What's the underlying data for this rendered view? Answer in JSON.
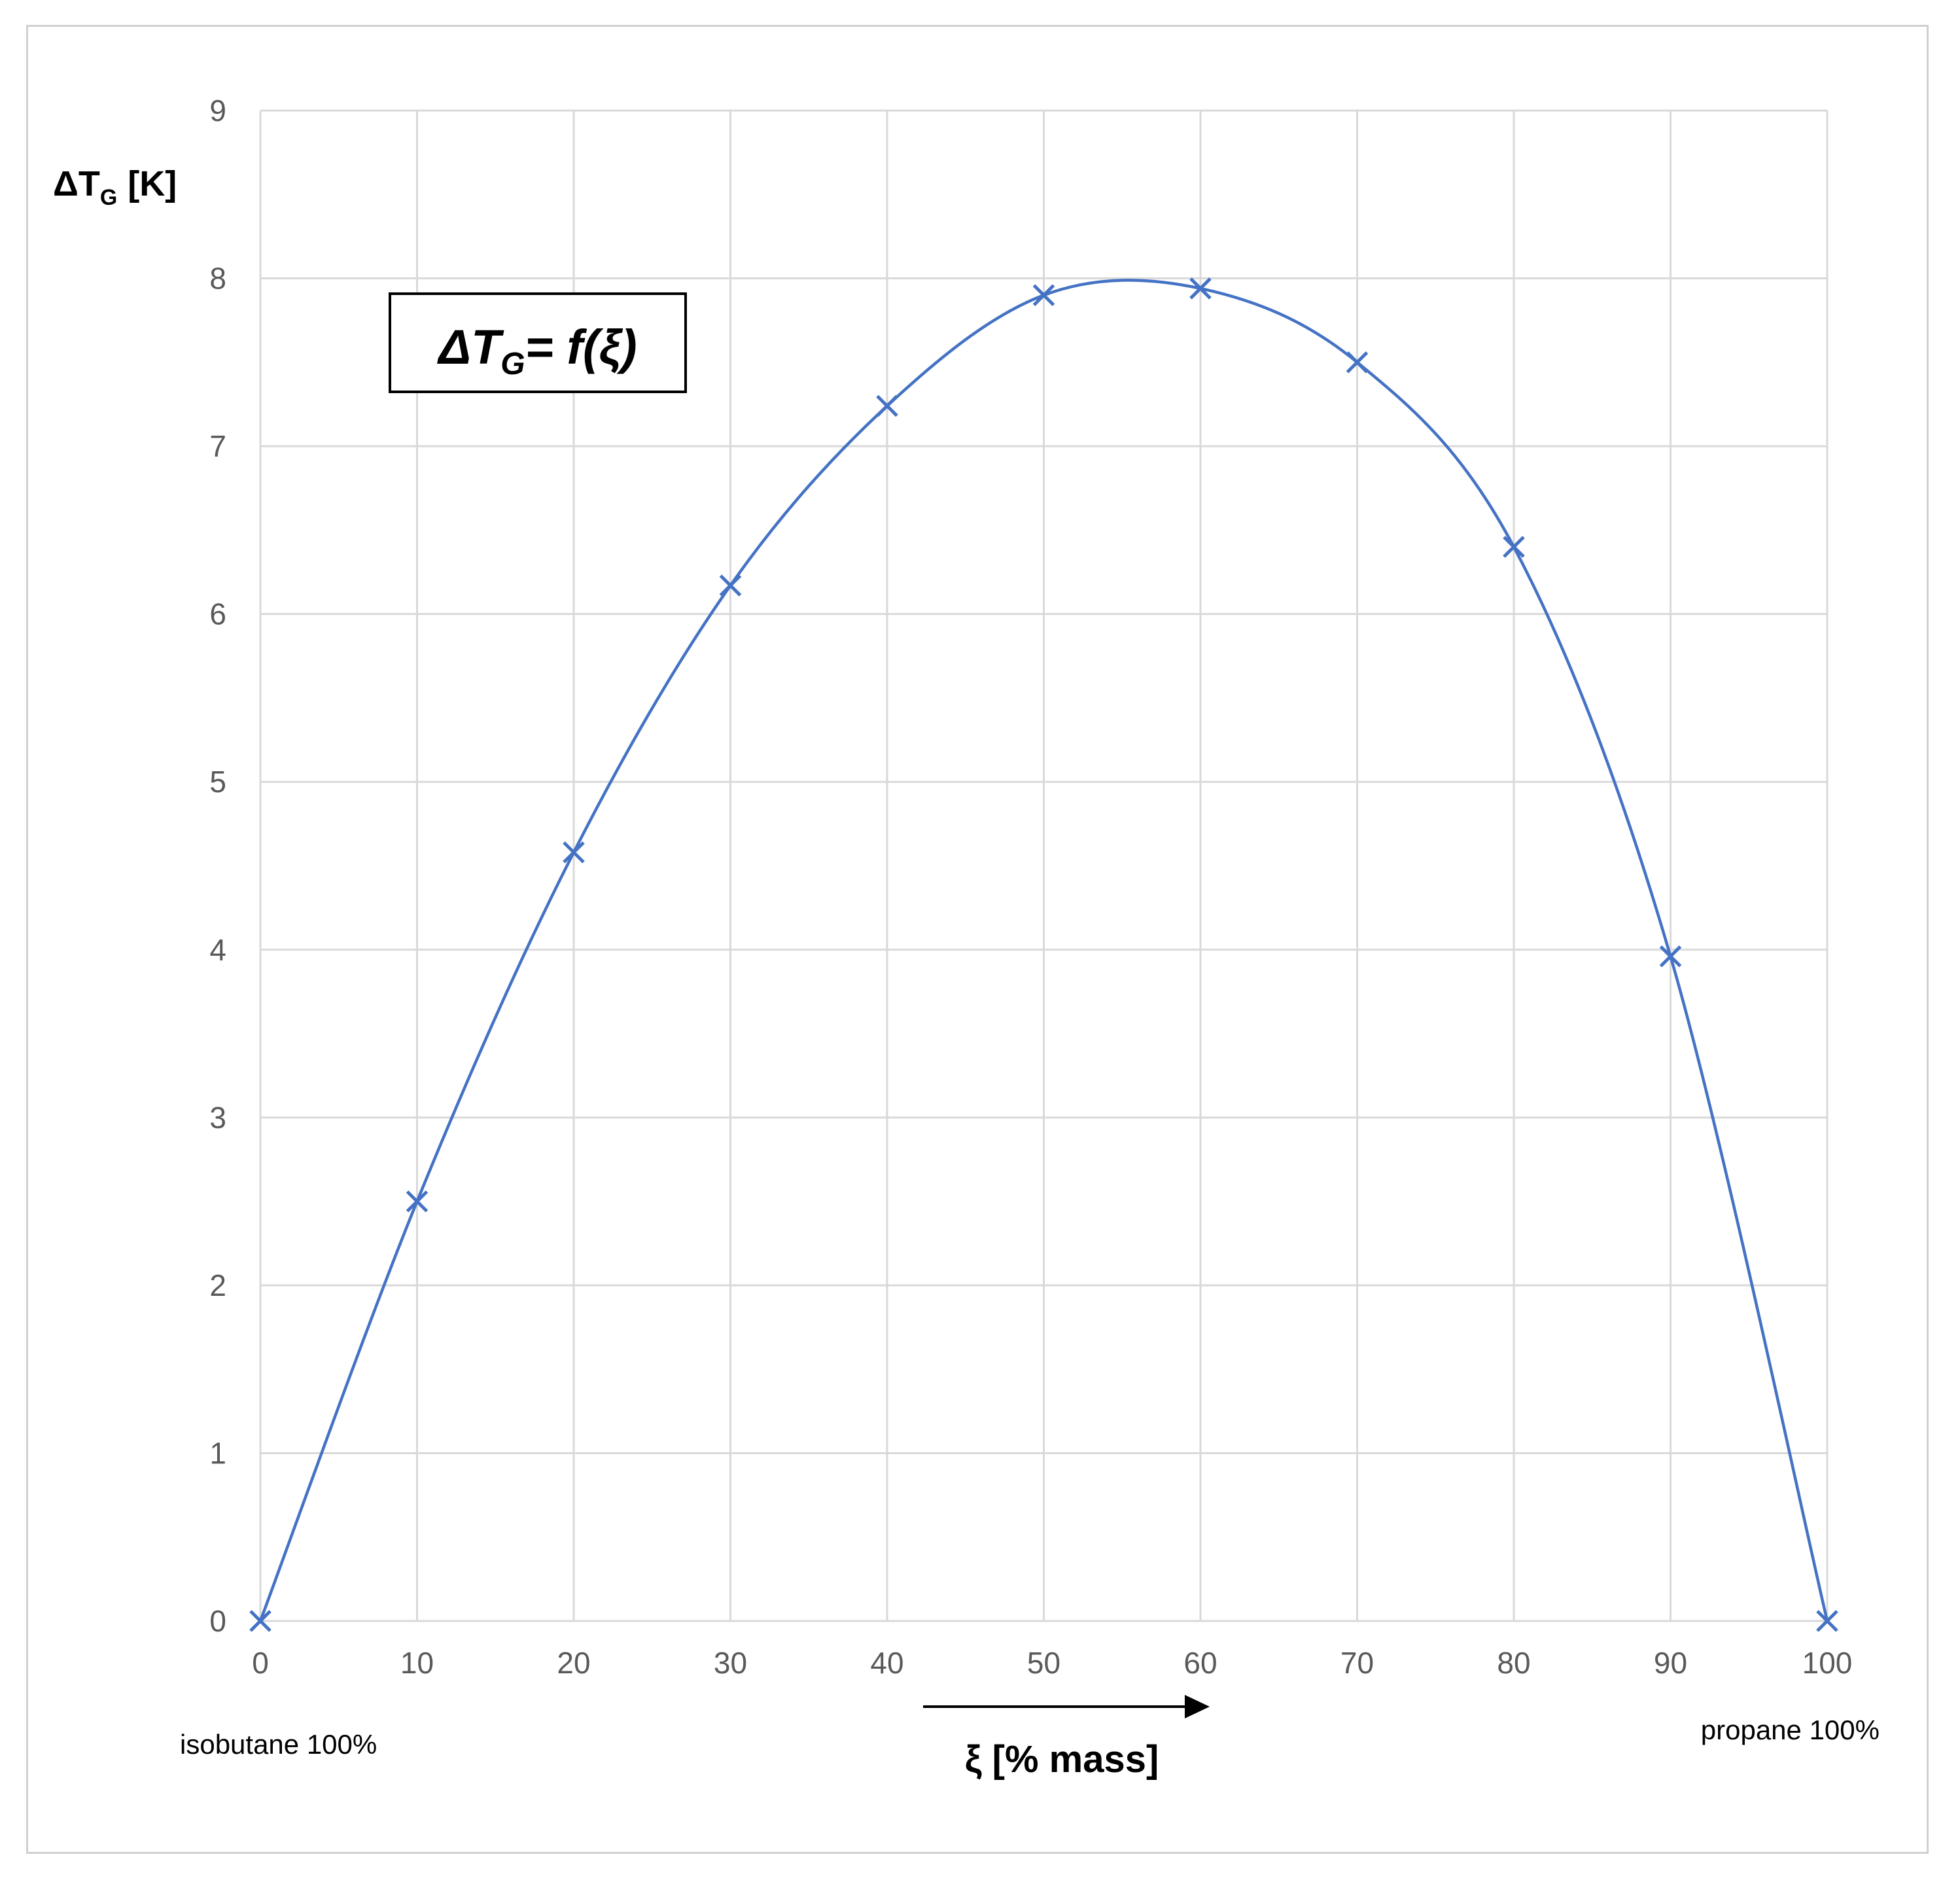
{
  "chart_data": {
    "type": "line",
    "title": "",
    "annotation": {
      "lhs": "ΔT",
      "lhs_sub": "G",
      "rhs": "= f(ξ)"
    },
    "xlabel": "ξ [% mass]",
    "ylabel": "ΔT",
    "ylabel_sub": "G",
    "ylabel_unit": "[K]",
    "x_left_note": "isobutane 100%",
    "x_right_note": "propane 100%",
    "xlim": [
      0,
      100
    ],
    "ylim": [
      0,
      9
    ],
    "xticks": [
      "0",
      "10",
      "20",
      "30",
      "40",
      "50",
      "60",
      "70",
      "80",
      "90",
      "100"
    ],
    "yticks": [
      "0",
      "1",
      "2",
      "3",
      "4",
      "5",
      "6",
      "7",
      "8",
      "9"
    ],
    "grid": true,
    "marker": "x",
    "smooth": true,
    "series_color": "#4472c4",
    "x": [
      0,
      10,
      20,
      30,
      40,
      50,
      60,
      70,
      80,
      90,
      100
    ],
    "y": [
      0,
      2.5,
      4.58,
      6.17,
      7.24,
      7.9,
      7.94,
      7.5,
      6.4,
      3.96,
      0
    ]
  }
}
